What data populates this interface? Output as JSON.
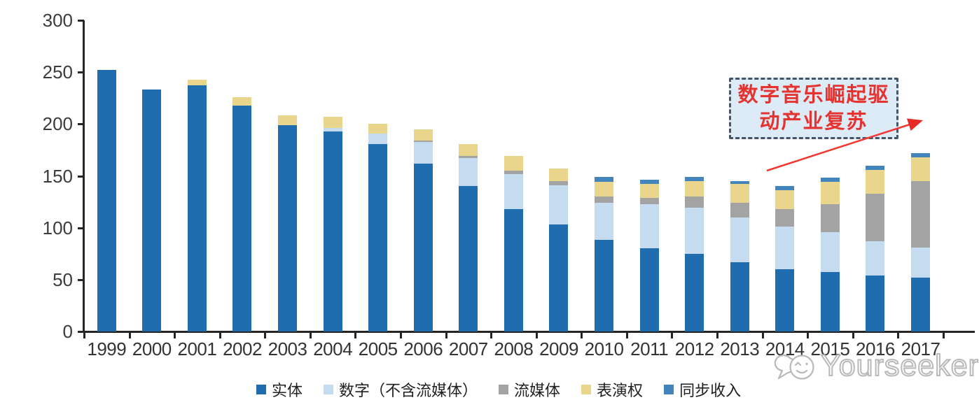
{
  "chart_data": {
    "type": "bar",
    "stacked": true,
    "categories": [
      "1999",
      "2000",
      "2001",
      "2002",
      "2003",
      "2004",
      "2005",
      "2006",
      "2007",
      "2008",
      "2009",
      "2010",
      "2011",
      "2012",
      "2013",
      "2014",
      "2015",
      "2016",
      "2017"
    ],
    "series": [
      {
        "name": "实体",
        "color": "#1f6dae",
        "values": [
          252,
          233,
          237,
          218,
          199,
          193,
          181,
          162,
          140,
          118,
          103,
          88,
          80,
          75,
          67,
          60,
          57,
          54,
          52
        ]
      },
      {
        "name": "数字（不含流媒体）",
        "color": "#c5dbef",
        "values": [
          0,
          0,
          0,
          0,
          0,
          3,
          10,
          21,
          27,
          34,
          38,
          36,
          43,
          44,
          43,
          41,
          39,
          33,
          29
        ]
      },
      {
        "name": "流媒体",
        "color": "#a3a3a3",
        "values": [
          0,
          0,
          0,
          0,
          0,
          0,
          0,
          1,
          2,
          3,
          4,
          6,
          6,
          11,
          14,
          17,
          27,
          46,
          64
        ]
      },
      {
        "name": "表演权",
        "color": "#e9d68c",
        "values": [
          0,
          0,
          6,
          8,
          9,
          11,
          9,
          11,
          12,
          14,
          12,
          14,
          13,
          15,
          18,
          18,
          21,
          23,
          23
        ]
      },
      {
        "name": "同步收入",
        "color": "#4484bd",
        "values": [
          0,
          0,
          0,
          0,
          0,
          0,
          0,
          0,
          0,
          0,
          0,
          5,
          4,
          4,
          3,
          4,
          4,
          4,
          4
        ]
      }
    ],
    "ylim": [
      0,
      300
    ],
    "yticks": [
      0,
      50,
      100,
      150,
      200,
      250,
      300
    ],
    "xlabel": "",
    "ylabel": "",
    "grid": false,
    "legend_position": "bottom"
  },
  "annotation": {
    "line1": "数字音乐崛起驱",
    "line2": "动产业复苏",
    "text_color": "#e53330",
    "box_fill": "#ddebf7",
    "box_border": "#44546a",
    "arrow_color": "#f1372f"
  },
  "watermark": {
    "text": "Yourseeker",
    "color": "#b9b9b9"
  }
}
